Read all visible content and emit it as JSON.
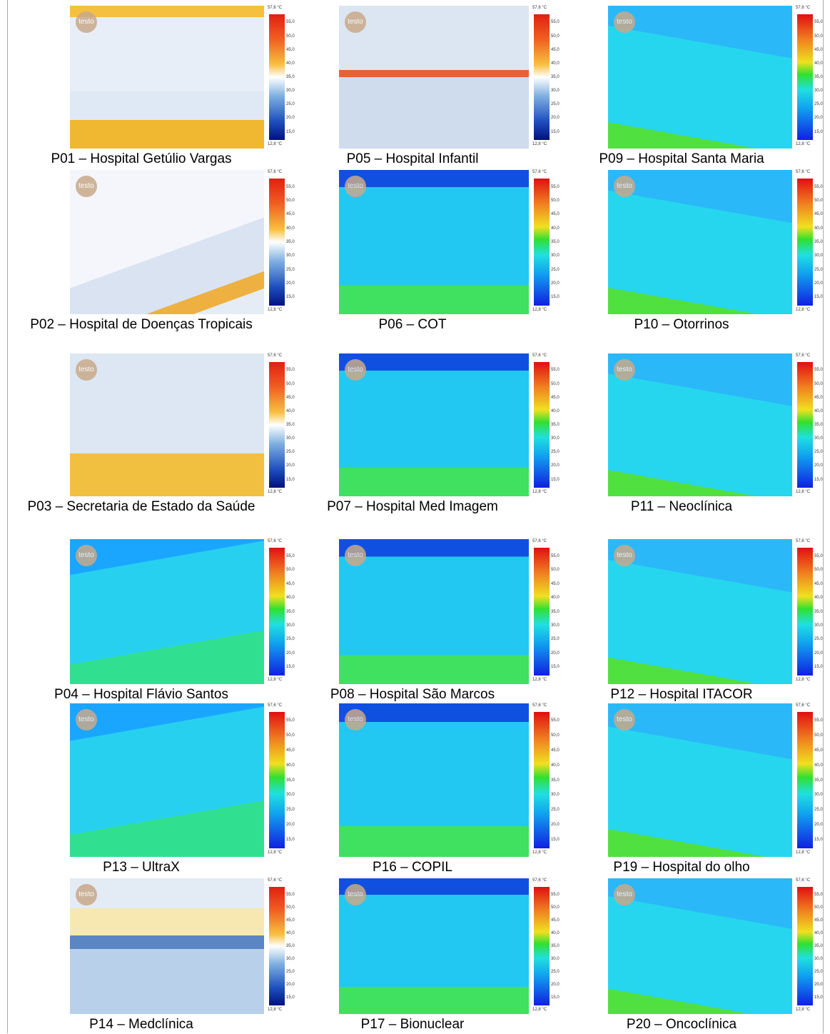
{
  "panels": [
    {
      "caption": "P01 – Hospital Getúlio Vargas",
      "logo": "testo",
      "scale": {
        "max": "57,6 °C",
        "min": "12,8 °C",
        "ticks": [
          "55,0",
          "50,0",
          "45,0",
          "40,0",
          "35,0",
          "30,0",
          "25,0",
          "20,0",
          "15,0"
        ]
      }
    },
    {
      "caption": "P05 – Hospital Infantil",
      "logo": "testo",
      "scale": {
        "max": "57,6 °C",
        "min": "12,8 °C",
        "ticks": [
          "55,0",
          "50,0",
          "45,0",
          "40,0",
          "35,0",
          "30,0",
          "25,0",
          "20,0",
          "15,0"
        ]
      }
    },
    {
      "caption": "P09 – Hospital Santa Maria",
      "logo": "testo",
      "scale": {
        "max": "57,6 °C",
        "min": "12,8 °C",
        "ticks": [
          "55,0",
          "50,0",
          "45,0",
          "40,0",
          "35,0",
          "30,0",
          "25,0",
          "20,0",
          "15,0"
        ]
      }
    },
    {
      "caption": "P02 – Hospital de Doenças Tropicais",
      "logo": "testo",
      "scale": {
        "max": "57,6 °C",
        "min": "12,8 °C",
        "ticks": [
          "55,0",
          "50,0",
          "45,0",
          "40,0",
          "35,0",
          "30,0",
          "25,0",
          "20,0",
          "15,0"
        ]
      }
    },
    {
      "caption": "P06 – COT",
      "logo": "testo",
      "scale": {
        "max": "57,6 °C",
        "min": "12,8 °C",
        "ticks": [
          "55,0",
          "50,0",
          "45,0",
          "40,0",
          "35,0",
          "30,0",
          "25,0",
          "20,0",
          "15,0"
        ]
      }
    },
    {
      "caption": "P10 – Otorrinos",
      "logo": "testo",
      "scale": {
        "max": "57,6 °C",
        "min": "12,8 °C",
        "ticks": [
          "55,0",
          "50,0",
          "45,0",
          "40,0",
          "35,0",
          "30,0",
          "25,0",
          "20,0",
          "15,0"
        ]
      }
    },
    {
      "caption": "P03 – Secretaria de Estado da Saúde",
      "logo": "testo",
      "scale": {
        "max": "57,6 °C",
        "min": "12,8 °C",
        "ticks": [
          "55,0",
          "50,0",
          "45,0",
          "40,0",
          "35,0",
          "30,0",
          "25,0",
          "20,0",
          "15,0"
        ]
      }
    },
    {
      "caption": "P07 – Hospital Med Imagem",
      "logo": "testo",
      "scale": {
        "max": "57,6 °C",
        "min": "12,8 °C",
        "ticks": [
          "55,0",
          "50,0",
          "45,0",
          "40,0",
          "35,0",
          "30,0",
          "25,0",
          "20,0",
          "15,0"
        ]
      }
    },
    {
      "caption": "P11 – Neoclínica",
      "logo": "testo",
      "scale": {
        "max": "57,6 °C",
        "min": "12,8 °C",
        "ticks": [
          "55,0",
          "50,0",
          "45,0",
          "40,0",
          "35,0",
          "30,0",
          "25,0",
          "20,0",
          "15,0"
        ]
      }
    },
    {
      "caption": "P04 – Hospital Flávio Santos",
      "logo": "testo",
      "scale": {
        "max": "57,6 °C",
        "min": "12,8 °C",
        "ticks": [
          "55,0",
          "50,0",
          "45,0",
          "40,0",
          "35,0",
          "30,0",
          "25,0",
          "20,0",
          "15,0"
        ]
      }
    },
    {
      "caption": "P08 – Hospital São Marcos",
      "logo": "testo",
      "scale": {
        "max": "57,6 °C",
        "min": "12,8 °C",
        "ticks": [
          "55,0",
          "50,0",
          "45,0",
          "40,0",
          "35,0",
          "30,0",
          "25,0",
          "20,0",
          "15,0"
        ]
      }
    },
    {
      "caption": "P12 – Hospital ITACOR",
      "logo": "testo",
      "scale": {
        "max": "57,6 °C",
        "min": "12,8 °C",
        "ticks": [
          "55,0",
          "50,0",
          "45,0",
          "40,0",
          "35,0",
          "30,0",
          "25,0",
          "20,0",
          "15,0"
        ]
      }
    },
    {
      "caption": "P13 – UltraX",
      "logo": "testo",
      "scale": {
        "max": "57,6 °C",
        "min": "12,8 °C",
        "ticks": [
          "55,0",
          "50,0",
          "45,0",
          "40,0",
          "35,0",
          "30,0",
          "25,0",
          "20,0",
          "15,0"
        ]
      }
    },
    {
      "caption": "P16 – COPIL",
      "logo": "testo",
      "scale": {
        "max": "57,6 °C",
        "min": "12,8 °C",
        "ticks": [
          "55,0",
          "50,0",
          "45,0",
          "40,0",
          "35,0",
          "30,0",
          "25,0",
          "20,0",
          "15,0"
        ]
      }
    },
    {
      "caption": "P19 – Hospital do olho",
      "logo": "testo",
      "scale": {
        "max": "57,6 °C",
        "min": "12,8 °C",
        "ticks": [
          "55,0",
          "50,0",
          "45,0",
          "40,0",
          "35,0",
          "30,0",
          "25,0",
          "20,0",
          "15,0"
        ]
      }
    },
    {
      "caption": "P14 – Medclínica",
      "logo": "testo",
      "scale": {
        "max": "57,6 °C",
        "min": "12,8 °C",
        "ticks": [
          "55,0",
          "50,0",
          "45,0",
          "40,0",
          "35,0",
          "30,0",
          "25,0",
          "20,0",
          "15,0"
        ]
      }
    },
    {
      "caption": "P17 – Bionuclear",
      "logo": "testo",
      "scale": {
        "max": "57,6 °C",
        "min": "12,8 °C",
        "ticks": [
          "55,0",
          "50,0",
          "45,0",
          "40,0",
          "35,0",
          "30,0",
          "25,0",
          "20,0",
          "15,0"
        ]
      }
    },
    {
      "caption": "P20 – Oncoclínica",
      "logo": "testo",
      "scale": {
        "max": "57,6 °C",
        "min": "12,8 °C",
        "ticks": [
          "55,0",
          "50,0",
          "45,0",
          "40,0",
          "35,0",
          "30,0",
          "25,0",
          "20,0",
          "15,0"
        ]
      }
    }
  ]
}
